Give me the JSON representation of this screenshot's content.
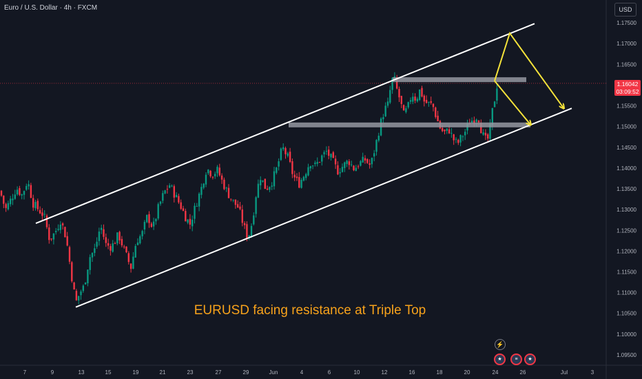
{
  "header": {
    "symbol_title": "Euro / U.S. Dollar · 4h · FXCM",
    "currency": "USD"
  },
  "annotation": "EURUSD facing resistance at Triple Top",
  "price_badge": {
    "price": "1.16042",
    "countdown": "03:09:52"
  },
  "icons": [
    "lightning-icon",
    "eu-flag-event-icon",
    "us-flag-event-icon",
    "eu-flag-event-icon"
  ],
  "colors": {
    "background": "#131722",
    "up": "#089981",
    "down": "#f23645",
    "annotation": "#f7a21b",
    "arrows": "#f4e23a",
    "zones": "#9598a1"
  },
  "chart_data": {
    "type": "candlestick",
    "y_axis": {
      "ylim": [
        1.0925,
        1.1805
      ],
      "ticks": [
        "1.17500",
        "1.17000",
        "1.16500",
        "1.16000",
        "1.15500",
        "1.15000",
        "1.14500",
        "1.14000",
        "1.13500",
        "1.13000",
        "1.12500",
        "1.12000",
        "1.11500",
        "1.11000",
        "1.10500",
        "1.10000",
        "1.09500"
      ]
    },
    "x_axis": {
      "ticks": [
        "7",
        "9",
        "13",
        "15",
        "19",
        "21",
        "23",
        "27",
        "29",
        "Jun",
        "4",
        "6",
        "10",
        "12",
        "16",
        "18",
        "20",
        "24",
        "26",
        "Jul",
        "3"
      ]
    },
    "current_price": 1.16042,
    "price_path": [
      [
        0,
        1.1345
      ],
      [
        8,
        1.13
      ],
      [
        16,
        1.1325
      ],
      [
        24,
        1.1352
      ],
      [
        32,
        1.1335
      ],
      [
        40,
        1.137
      ],
      [
        48,
        1.1315
      ],
      [
        56,
        1.13
      ],
      [
        64,
        1.1285
      ],
      [
        72,
        1.1228
      ],
      [
        80,
        1.1245
      ],
      [
        88,
        1.1275
      ],
      [
        96,
        1.1232
      ],
      [
        104,
        1.114
      ],
      [
        110,
        1.1075
      ],
      [
        116,
        1.11
      ],
      [
        122,
        1.1115
      ],
      [
        130,
        1.1185
      ],
      [
        138,
        1.1205
      ],
      [
        146,
        1.1262
      ],
      [
        154,
        1.1215
      ],
      [
        162,
        1.121
      ],
      [
        172,
        1.124
      ],
      [
        182,
        1.1195
      ],
      [
        190,
        1.116
      ],
      [
        198,
        1.1225
      ],
      [
        206,
        1.124
      ],
      [
        214,
        1.1285
      ],
      [
        222,
        1.1255
      ],
      [
        230,
        1.1305
      ],
      [
        238,
        1.134
      ],
      [
        246,
        1.136
      ],
      [
        254,
        1.1335
      ],
      [
        262,
        1.131
      ],
      [
        270,
        1.128
      ],
      [
        276,
        1.1265
      ],
      [
        284,
        1.131
      ],
      [
        292,
        1.135
      ],
      [
        300,
        1.14
      ],
      [
        308,
        1.1385
      ],
      [
        316,
        1.1395
      ],
      [
        322,
        1.137
      ],
      [
        330,
        1.1342
      ],
      [
        338,
        1.132
      ],
      [
        346,
        1.1305
      ],
      [
        354,
        1.126
      ],
      [
        360,
        1.123
      ],
      [
        366,
        1.127
      ],
      [
        372,
        1.134
      ],
      [
        378,
        1.138
      ],
      [
        386,
        1.135
      ],
      [
        394,
        1.1365
      ],
      [
        402,
        1.14
      ],
      [
        410,
        1.145
      ],
      [
        418,
        1.1425
      ],
      [
        426,
        1.138
      ],
      [
        434,
        1.1362
      ],
      [
        442,
        1.1385
      ],
      [
        450,
        1.1415
      ],
      [
        458,
        1.1405
      ],
      [
        466,
        1.1425
      ],
      [
        474,
        1.144
      ],
      [
        482,
        1.142
      ],
      [
        490,
        1.1393
      ],
      [
        498,
        1.1405
      ],
      [
        506,
        1.1418
      ],
      [
        514,
        1.1398
      ],
      [
        522,
        1.1412
      ],
      [
        530,
        1.142
      ],
      [
        538,
        1.1405
      ],
      [
        546,
        1.146
      ],
      [
        552,
        1.1505
      ],
      [
        558,
        1.154
      ],
      [
        564,
        1.1555
      ],
      [
        568,
        1.161
      ],
      [
        572,
        1.1618
      ],
      [
        576,
        1.159
      ],
      [
        580,
        1.1568
      ],
      [
        586,
        1.1528
      ],
      [
        592,
        1.1545
      ],
      [
        598,
        1.158
      ],
      [
        604,
        1.1565
      ],
      [
        610,
        1.159
      ],
      [
        616,
        1.156
      ],
      [
        622,
        1.1555
      ],
      [
        628,
        1.1552
      ],
      [
        634,
        1.152
      ],
      [
        640,
        1.1492
      ],
      [
        646,
        1.1485
      ],
      [
        652,
        1.1492
      ],
      [
        658,
        1.147
      ],
      [
        664,
        1.1458
      ],
      [
        670,
        1.1475
      ],
      [
        676,
        1.149
      ],
      [
        682,
        1.1512
      ],
      [
        688,
        1.1518
      ],
      [
        694,
        1.1527
      ],
      [
        700,
        1.1482
      ],
      [
        706,
        1.1465
      ],
      [
        710,
        1.1475
      ],
      [
        714,
        1.153
      ],
      [
        718,
        1.1565
      ],
      [
        722,
        1.1605
      ]
    ],
    "channel": {
      "upper": [
        [
          52,
          1.1267
        ],
        [
          776,
          1.1748
        ]
      ],
      "lower": [
        [
          110,
          1.1065
        ],
        [
          830,
          1.1544
        ]
      ]
    },
    "resistance_zones": [
      {
        "x0": 570,
        "x1": 764,
        "y": 1.1613
      },
      {
        "x0": 419,
        "x1": 770,
        "y": 1.1504
      }
    ],
    "projection_arrows": [
      [
        [
          718,
          1.161
        ],
        [
          740,
          1.1725
        ],
        [
          818,
          1.1545
        ]
      ],
      [
        [
          718,
          1.161
        ],
        [
          770,
          1.1505
        ]
      ]
    ]
  }
}
